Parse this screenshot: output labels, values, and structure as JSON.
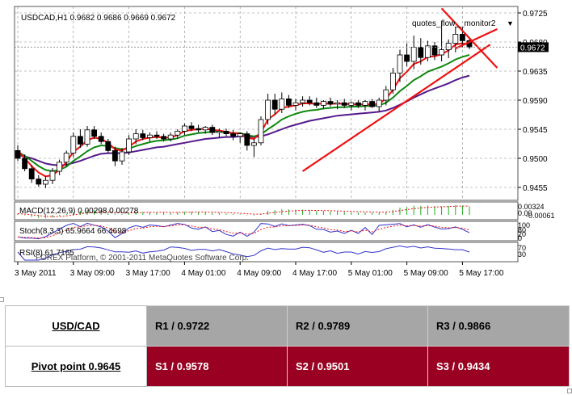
{
  "chart_data": {
    "type": "candlestick",
    "symbol_label": "USDCAD,H1  0.9682 0.9686 0.9669 0.9672",
    "indicator_label": "quotes_flow__monitor2",
    "indicator_arrow": "▼",
    "current_price": "0.9672",
    "ylim": [
      0.9435,
      0.9735
    ],
    "y_ticks": [
      "0.9725",
      "0.9680",
      "0.9635",
      "0.9590",
      "0.9545",
      "0.9500",
      "0.9455"
    ],
    "y_tick_values": [
      0.9725,
      0.968,
      0.9635,
      0.959,
      0.9545,
      0.95,
      0.9455
    ],
    "x_ticks": [
      "3 May 2011",
      "3 May 09:00",
      "3 May 17:00",
      "4 May 01:00",
      "4 May 09:00",
      "4 May 17:00",
      "5 May 01:00",
      "5 May 09:00",
      "5 May 17:00"
    ],
    "x_tick_bars": [
      0,
      8,
      16,
      24,
      32,
      40,
      48,
      56,
      64
    ],
    "candles": [
      {
        "o": 0.9512,
        "h": 0.952,
        "l": 0.9496,
        "c": 0.95
      },
      {
        "o": 0.95,
        "h": 0.9506,
        "l": 0.948,
        "c": 0.9484
      },
      {
        "o": 0.9484,
        "h": 0.949,
        "l": 0.9462,
        "c": 0.9468
      },
      {
        "o": 0.9468,
        "h": 0.9474,
        "l": 0.9456,
        "c": 0.946
      },
      {
        "o": 0.946,
        "h": 0.9472,
        "l": 0.9454,
        "c": 0.9466
      },
      {
        "o": 0.9466,
        "h": 0.9485,
        "l": 0.946,
        "c": 0.948
      },
      {
        "o": 0.948,
        "h": 0.9498,
        "l": 0.9474,
        "c": 0.9494
      },
      {
        "o": 0.9494,
        "h": 0.9512,
        "l": 0.9488,
        "c": 0.9508
      },
      {
        "o": 0.9508,
        "h": 0.954,
        "l": 0.9502,
        "c": 0.9534
      },
      {
        "o": 0.9534,
        "h": 0.9545,
        "l": 0.9516,
        "c": 0.9522
      },
      {
        "o": 0.9522,
        "h": 0.955,
        "l": 0.9518,
        "c": 0.9544
      },
      {
        "o": 0.9544,
        "h": 0.955,
        "l": 0.953,
        "c": 0.9534
      },
      {
        "o": 0.9534,
        "h": 0.954,
        "l": 0.9522,
        "c": 0.9526
      },
      {
        "o": 0.9526,
        "h": 0.953,
        "l": 0.9508,
        "c": 0.9512
      },
      {
        "o": 0.9512,
        "h": 0.9518,
        "l": 0.9488,
        "c": 0.9496
      },
      {
        "o": 0.9496,
        "h": 0.9516,
        "l": 0.949,
        "c": 0.951
      },
      {
        "o": 0.951,
        "h": 0.9536,
        "l": 0.9505,
        "c": 0.953
      },
      {
        "o": 0.953,
        "h": 0.9545,
        "l": 0.9522,
        "c": 0.9538
      },
      {
        "o": 0.9538,
        "h": 0.9544,
        "l": 0.9528,
        "c": 0.9532
      },
      {
        "o": 0.9532,
        "h": 0.954,
        "l": 0.9526,
        "c": 0.9536
      },
      {
        "o": 0.9536,
        "h": 0.9542,
        "l": 0.953,
        "c": 0.9534
      },
      {
        "o": 0.9534,
        "h": 0.9538,
        "l": 0.9526,
        "c": 0.953
      },
      {
        "o": 0.953,
        "h": 0.954,
        "l": 0.9526,
        "c": 0.9536
      },
      {
        "o": 0.9536,
        "h": 0.9545,
        "l": 0.953,
        "c": 0.9542
      },
      {
        "o": 0.9542,
        "h": 0.9554,
        "l": 0.9536,
        "c": 0.955
      },
      {
        "o": 0.955,
        "h": 0.9556,
        "l": 0.9542,
        "c": 0.9546
      },
      {
        "o": 0.9546,
        "h": 0.9552,
        "l": 0.954,
        "c": 0.9544
      },
      {
        "o": 0.9544,
        "h": 0.955,
        "l": 0.9538,
        "c": 0.9548
      },
      {
        "o": 0.9548,
        "h": 0.9552,
        "l": 0.9536,
        "c": 0.954
      },
      {
        "o": 0.954,
        "h": 0.9546,
        "l": 0.9532,
        "c": 0.9542
      },
      {
        "o": 0.9542,
        "h": 0.9546,
        "l": 0.9534,
        "c": 0.9538
      },
      {
        "o": 0.9538,
        "h": 0.9544,
        "l": 0.9528,
        "c": 0.9534
      },
      {
        "o": 0.9534,
        "h": 0.954,
        "l": 0.9524,
        "c": 0.9538
      },
      {
        "o": 0.9538,
        "h": 0.9542,
        "l": 0.9512,
        "c": 0.952
      },
      {
        "o": 0.952,
        "h": 0.953,
        "l": 0.9502,
        "c": 0.9524
      },
      {
        "o": 0.9524,
        "h": 0.9565,
        "l": 0.952,
        "c": 0.956
      },
      {
        "o": 0.956,
        "h": 0.96,
        "l": 0.9552,
        "c": 0.959
      },
      {
        "o": 0.959,
        "h": 0.96,
        "l": 0.9568,
        "c": 0.9576
      },
      {
        "o": 0.9576,
        "h": 0.9602,
        "l": 0.957,
        "c": 0.9592
      },
      {
        "o": 0.9592,
        "h": 0.9598,
        "l": 0.9578,
        "c": 0.9582
      },
      {
        "o": 0.9582,
        "h": 0.9592,
        "l": 0.9574,
        "c": 0.9586
      },
      {
        "o": 0.9586,
        "h": 0.9596,
        "l": 0.958,
        "c": 0.959
      },
      {
        "o": 0.959,
        "h": 0.9596,
        "l": 0.9582,
        "c": 0.9586
      },
      {
        "o": 0.9586,
        "h": 0.9594,
        "l": 0.9578,
        "c": 0.9582
      },
      {
        "o": 0.9582,
        "h": 0.959,
        "l": 0.9576,
        "c": 0.9588
      },
      {
        "o": 0.9588,
        "h": 0.9594,
        "l": 0.958,
        "c": 0.9584
      },
      {
        "o": 0.9584,
        "h": 0.959,
        "l": 0.9576,
        "c": 0.9586
      },
      {
        "o": 0.9586,
        "h": 0.9592,
        "l": 0.9578,
        "c": 0.9582
      },
      {
        "o": 0.9582,
        "h": 0.9588,
        "l": 0.9574,
        "c": 0.9586
      },
      {
        "o": 0.9586,
        "h": 0.959,
        "l": 0.9578,
        "c": 0.9582
      },
      {
        "o": 0.9582,
        "h": 0.959,
        "l": 0.9574,
        "c": 0.9588
      },
      {
        "o": 0.9588,
        "h": 0.9592,
        "l": 0.9578,
        "c": 0.958
      },
      {
        "o": 0.958,
        "h": 0.9594,
        "l": 0.9572,
        "c": 0.959
      },
      {
        "o": 0.959,
        "h": 0.9612,
        "l": 0.9582,
        "c": 0.9606
      },
      {
        "o": 0.9606,
        "h": 0.964,
        "l": 0.96,
        "c": 0.9632
      },
      {
        "o": 0.9632,
        "h": 0.9668,
        "l": 0.9618,
        "c": 0.966
      },
      {
        "o": 0.966,
        "h": 0.9678,
        "l": 0.9642,
        "c": 0.965
      },
      {
        "o": 0.965,
        "h": 0.969,
        "l": 0.9638,
        "c": 0.9672
      },
      {
        "o": 0.9672,
        "h": 0.9686,
        "l": 0.9645,
        "c": 0.9656
      },
      {
        "o": 0.9656,
        "h": 0.9682,
        "l": 0.965,
        "c": 0.9674
      },
      {
        "o": 0.9674,
        "h": 0.968,
        "l": 0.9652,
        "c": 0.966
      },
      {
        "o": 0.966,
        "h": 0.9712,
        "l": 0.965,
        "c": 0.9668
      },
      {
        "o": 0.9668,
        "h": 0.9684,
        "l": 0.9655,
        "c": 0.9678
      },
      {
        "o": 0.9678,
        "h": 0.9704,
        "l": 0.9664,
        "c": 0.9692
      },
      {
        "o": 0.9692,
        "h": 0.9702,
        "l": 0.9672,
        "c": 0.9682
      },
      {
        "o": 0.9682,
        "h": 0.9686,
        "l": 0.9669,
        "c": 0.9672
      }
    ],
    "ma_fast": [
      0.9512,
      0.95,
      0.9488,
      0.9478,
      0.9472,
      0.9474,
      0.9482,
      0.9494,
      0.951,
      0.9518,
      0.9528,
      0.9532,
      0.953,
      0.9524,
      0.9514,
      0.9512,
      0.9518,
      0.9526,
      0.953,
      0.9532,
      0.9533,
      0.9532,
      0.9532,
      0.9536,
      0.9542,
      0.9544,
      0.9545,
      0.9546,
      0.9544,
      0.9543,
      0.9541,
      0.9539,
      0.9538,
      0.9532,
      0.953,
      0.954,
      0.956,
      0.9568,
      0.9578,
      0.958,
      0.9582,
      0.9585,
      0.9585,
      0.9584,
      0.9585,
      0.9584,
      0.9585,
      0.9584,
      0.9584,
      0.9583,
      0.9584,
      0.9583,
      0.9585,
      0.9592,
      0.9606,
      0.9624,
      0.9634,
      0.9646,
      0.965,
      0.9657,
      0.9658,
      0.9661,
      0.9667,
      0.9676,
      0.9678,
      0.9676
    ],
    "ma_mid": [
      0.951,
      0.9504,
      0.9496,
      0.9488,
      0.9482,
      0.948,
      0.9482,
      0.9487,
      0.9496,
      0.9503,
      0.9511,
      0.9517,
      0.952,
      0.9519,
      0.9516,
      0.9514,
      0.9515,
      0.9519,
      0.9522,
      0.9525,
      0.9527,
      0.9528,
      0.9529,
      0.9531,
      0.9535,
      0.9537,
      0.9539,
      0.954,
      0.9541,
      0.9541,
      0.954,
      0.9539,
      0.9539,
      0.9536,
      0.9534,
      0.9537,
      0.9545,
      0.9552,
      0.956,
      0.9565,
      0.9569,
      0.9572,
      0.9574,
      0.9575,
      0.9577,
      0.9578,
      0.9579,
      0.9579,
      0.958,
      0.958,
      0.9581,
      0.9581,
      0.9582,
      0.9586,
      0.9594,
      0.9604,
      0.9612,
      0.9621,
      0.9627,
      0.9634,
      0.9638,
      0.9642,
      0.9647,
      0.9653,
      0.9657,
      0.966
    ],
    "ma_slow": [
      0.9505,
      0.9503,
      0.95,
      0.9496,
      0.9492,
      0.949,
      0.9489,
      0.949,
      0.9493,
      0.9496,
      0.95,
      0.9504,
      0.9507,
      0.9508,
      0.9508,
      0.9508,
      0.9509,
      0.9511,
      0.9513,
      0.9515,
      0.9517,
      0.9518,
      0.952,
      0.9522,
      0.9524,
      0.9526,
      0.9528,
      0.953,
      0.9531,
      0.9532,
      0.9533,
      0.9533,
      0.9534,
      0.9534,
      0.9533,
      0.9534,
      0.9537,
      0.9541,
      0.9545,
      0.9549,
      0.9552,
      0.9555,
      0.9558,
      0.956,
      0.9562,
      0.9564,
      0.9566,
      0.9567,
      0.9568,
      0.9569,
      0.957,
      0.9571,
      0.9572,
      0.9574,
      0.9578,
      0.9583,
      0.9588,
      0.9594,
      0.9599,
      0.9604,
      0.9608,
      0.9612,
      0.9616,
      0.9621,
      0.9625,
      0.9628
    ],
    "trend_lines": [
      {
        "x1_bar": 41,
        "y1": 0.948,
        "x2_bar": 68,
        "y2": 0.9676
      },
      {
        "x1_bar": 61,
        "y1": 0.9732,
        "x2_bar": 69,
        "y2": 0.964
      },
      {
        "x1_bar": 63,
        "y1": 0.967,
        "x2_bar": 69,
        "y2": 0.97
      }
    ],
    "macd_label": "MACD(12,26,9) 0.00298 0.00278",
    "macd_right_labels": [
      "0.00324",
      "0.00",
      "-0.00061"
    ],
    "stoch_label": "Stoch(8,3,3) 65.9664 66.4698",
    "stoch_right_labels": [
      "100",
      "80",
      "20",
      "0"
    ],
    "rsi_label": "RSI(8) 61.7165",
    "watermark": "FOREX Platform, © 2001-2011 MetaQuotes Software Corp.",
    "rsi_right_labels": [
      "70",
      "30"
    ]
  },
  "pivot_table": {
    "pair": "USD/CAD",
    "pivot": "Pivot point 0.9645",
    "r1": "R1 / 0.9722",
    "r2": "R2 / 0.9789",
    "r3": "R3 / 0.9866",
    "s1": "S1 / 0.9578",
    "s2": "S2 / 0.9501",
    "s3": "S3 / 0.9434"
  },
  "colors": {
    "bull_candle": "#ffffff",
    "bear_candle": "#000000",
    "ma_fast": "#ee1111",
    "ma_mid": "#118811",
    "ma_slow": "#551a8b",
    "trend_line": "#ee1111",
    "r_row": "#a6a6a6",
    "s_row": "#990022"
  }
}
